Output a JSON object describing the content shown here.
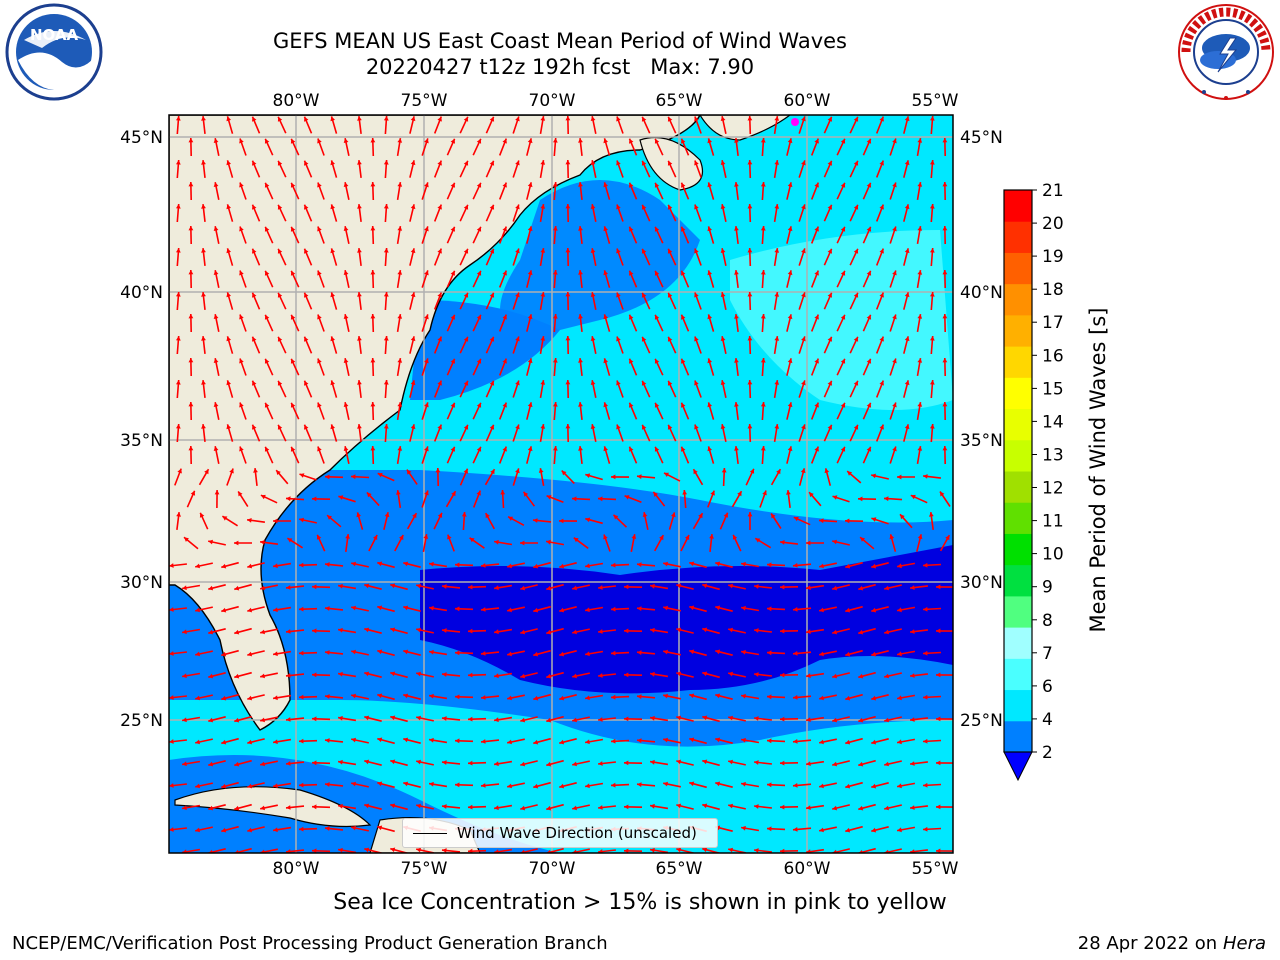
{
  "header": {
    "title_line1": "GEFS MEAN US East Coast Mean Period of Wind Waves",
    "title_line2": "20220427 t12z 192h fcst   Max: 7.90"
  },
  "map": {
    "lon_ticks_top": [
      "80°W",
      "75°W",
      "70°W",
      "65°W",
      "60°W",
      "55°W"
    ],
    "lon_ticks_bottom": [
      "80°W",
      "75°W",
      "70°W",
      "65°W",
      "60°W",
      "55°W"
    ],
    "lat_ticks_left": [
      "45°N",
      "40°N",
      "35°N",
      "30°N",
      "25°N"
    ],
    "lat_ticks_right": [
      "45°N",
      "40°N",
      "35°N",
      "30°N",
      "25°N"
    ],
    "legend_label": "Wind Wave Direction (unscaled)",
    "arrow_color": "#ff0000",
    "land_color": "#efecdc"
  },
  "colorbar": {
    "label": "Mean Period of Wind Waves [s]",
    "ticks": [
      "2",
      "4",
      "6",
      "7",
      "8",
      "9",
      "10",
      "11",
      "12",
      "13",
      "14",
      "15",
      "16",
      "17",
      "18",
      "19",
      "20",
      "21"
    ],
    "colors": [
      "#0080ff",
      "#00e8ff",
      "#4affff",
      "#a0ffff",
      "#50ff80",
      "#00e040",
      "#00e000",
      "#60e000",
      "#a0e000",
      "#c8ff00",
      "#e8ff00",
      "#ffff00",
      "#ffd700",
      "#ffb000",
      "#ff9000",
      "#ff6000",
      "#ff3000",
      "#ff0000"
    ],
    "under_color": "#0000ff"
  },
  "footer": {
    "subtitle": "Sea Ice Concentration > 15% is shown in pink to yellow",
    "left": "NCEP/EMC/Verification Post Processing Product Generation Branch",
    "right_date": "28 Apr 2022 on ",
    "right_host": "Hera"
  },
  "logos": {
    "noaa_text": "NOAA",
    "nws_text": "NATIONAL WEATHER SERVICE"
  }
}
